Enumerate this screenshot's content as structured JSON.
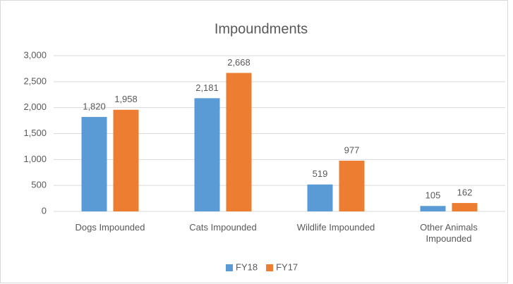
{
  "chart_data": {
    "type": "bar",
    "title": "Impoundments",
    "categories": [
      "Dogs Impounded",
      "Cats Impounded",
      "Wildlife Impounded",
      "Other Animals Impounded"
    ],
    "series": [
      {
        "name": "FY18",
        "color": "#5b9bd5",
        "values": [
          1820,
          2181,
          519,
          105
        ],
        "value_labels": [
          "1,820",
          "2,181",
          "519",
          "105"
        ]
      },
      {
        "name": "FY17",
        "color": "#ed7d31",
        "values": [
          1958,
          2668,
          977,
          162
        ],
        "value_labels": [
          "1,958",
          "2,668",
          "977",
          "162"
        ]
      }
    ],
    "ylim": [
      0,
      3000
    ],
    "yticks": [
      0,
      500,
      {
        "value": 1000,
        "label": "1,000"
      },
      {
        "value": 1500,
        "label": "1,500"
      },
      {
        "value": 2000,
        "label": "2,000"
      },
      {
        "value": 2500,
        "label": "2,500"
      },
      {
        "value": 3000,
        "label": "3,000"
      }
    ],
    "grid": true,
    "legend": "bottom"
  }
}
